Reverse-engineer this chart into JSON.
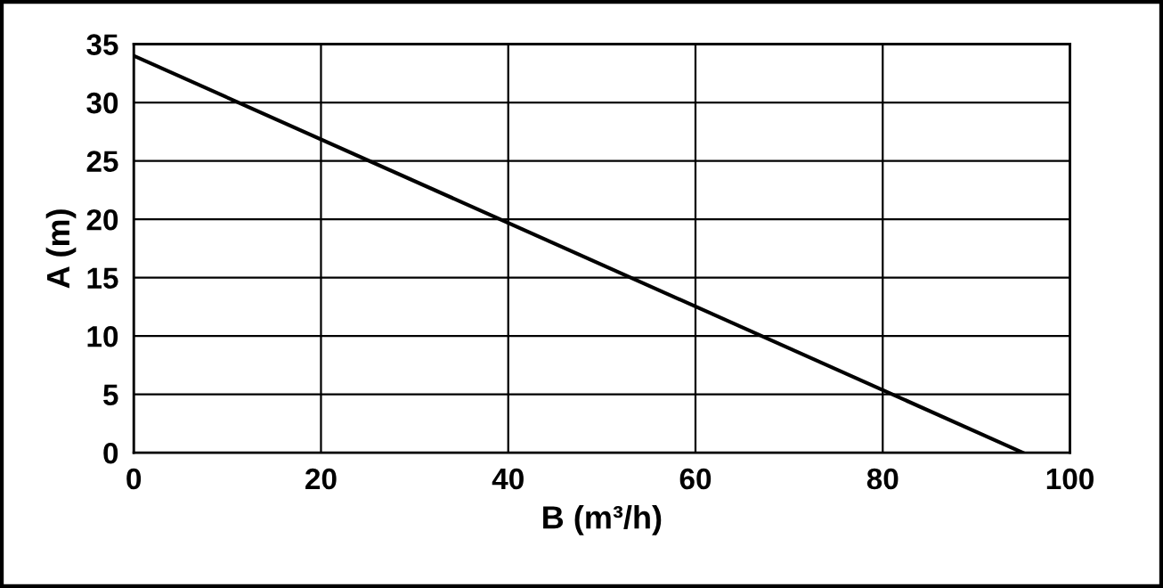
{
  "chart_data": {
    "type": "line",
    "xlabel": "B (m³/h)",
    "ylabel": "A (m)",
    "x": [
      0,
      95
    ],
    "series": [
      {
        "color": "#000000",
        "values": [
          34,
          0
        ]
      }
    ],
    "xlim": [
      0,
      100
    ],
    "xticks": [
      0,
      20,
      40,
      60,
      80,
      100
    ],
    "ylim": [
      0,
      35
    ],
    "yticks": [
      0,
      5,
      10,
      15,
      20,
      25,
      30,
      35
    ],
    "grid": true,
    "marker": "none",
    "line_style": "solid"
  }
}
